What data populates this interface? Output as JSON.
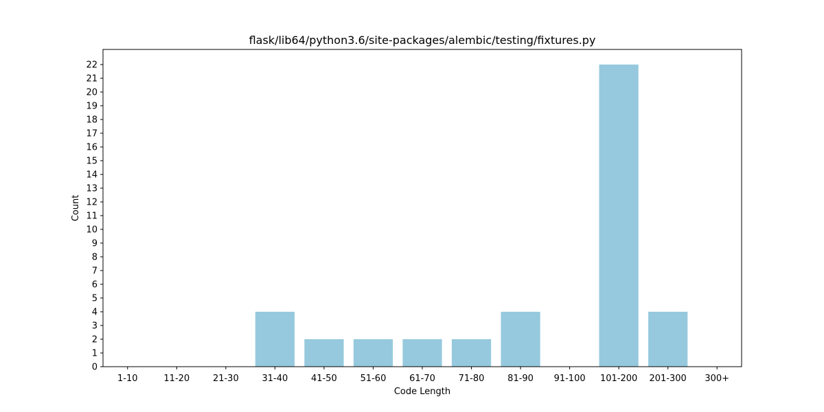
{
  "chart_data": {
    "type": "bar",
    "title": "flask/lib64/python3.6/site-packages/alembic/testing/fixtures.py",
    "xlabel": "Code Length",
    "ylabel": "Count",
    "categories": [
      "1-10",
      "11-20",
      "21-30",
      "31-40",
      "41-50",
      "51-60",
      "61-70",
      "71-80",
      "81-90",
      "91-100",
      "101-200",
      "201-300",
      "300+"
    ],
    "values": [
      0,
      0,
      0,
      4,
      2,
      2,
      2,
      2,
      4,
      0,
      22,
      4,
      0
    ],
    "ylim": [
      0,
      23.1
    ],
    "yticks": [
      0,
      1,
      2,
      3,
      4,
      5,
      6,
      7,
      8,
      9,
      10,
      11,
      12,
      13,
      14,
      15,
      16,
      17,
      18,
      19,
      20,
      21,
      22
    ],
    "bar_color": "#96c9dd",
    "grid": false,
    "legend": "none"
  }
}
